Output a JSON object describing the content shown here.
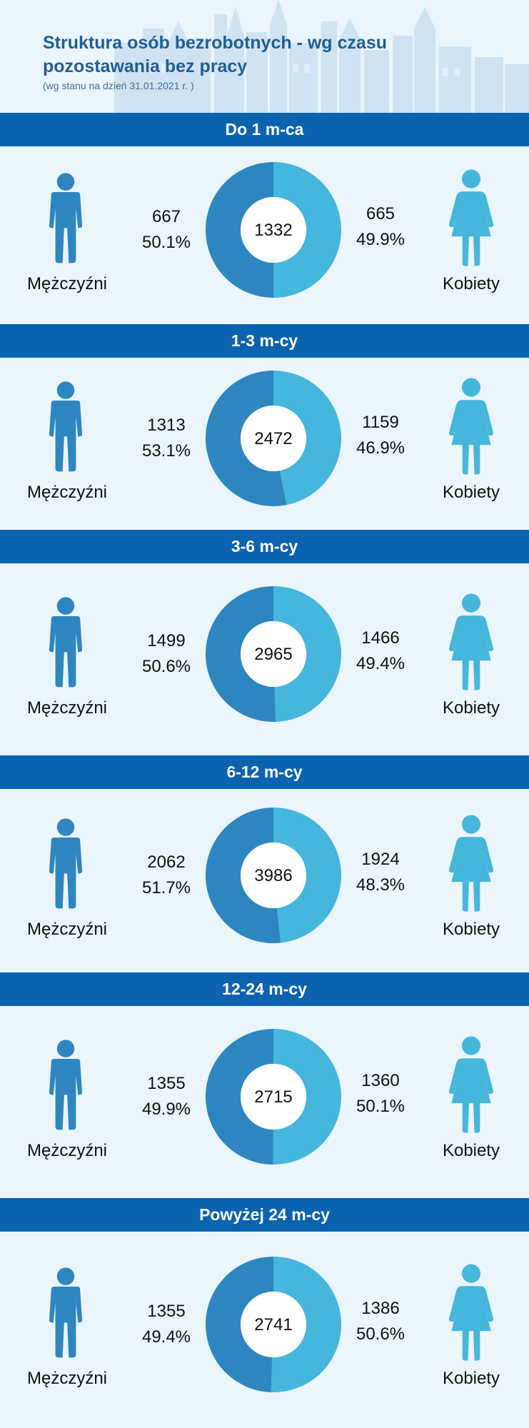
{
  "header": {
    "title": "Struktura osób bezrobotnych - wg czasu pozostawania bez pracy",
    "subtitle": "(wg stanu na dzień 31.01.2021 r. )"
  },
  "colors": {
    "band": "#0b63b0",
    "male": "#2e86c1",
    "female": "#45b6dc",
    "background": "#eaf5fc"
  },
  "labels": {
    "male": "Mężczyźni",
    "female": "Kobiety"
  },
  "chart_data": {
    "type": "pie",
    "variant": "donut",
    "sections": [
      {
        "title": "Do 1 m-ca",
        "total": "1332",
        "male": 667,
        "male_pct": "50.1%",
        "female": 665,
        "female_pct": "49.9%"
      },
      {
        "title": "1-3 m-cy",
        "total": "2472",
        "male": 1313,
        "male_pct": "53.1%",
        "female": 1159,
        "female_pct": "46.9%"
      },
      {
        "title": "3-6 m-cy",
        "total": "2965",
        "male": 1499,
        "male_pct": "50.6%",
        "female": 1466,
        "female_pct": "49.4%"
      },
      {
        "title": "6-12 m-cy",
        "total": "3986",
        "male": 2062,
        "male_pct": "51.7%",
        "female": 1924,
        "female_pct": "48.3%"
      },
      {
        "title": "12-24 m-cy",
        "total": "2715",
        "male": 1355,
        "male_pct": "49.9%",
        "female": 1360,
        "female_pct": "50.1%"
      },
      {
        "title": "Powyżej 24 m-cy",
        "total": "2741",
        "male": 1355,
        "male_pct": "49.4%",
        "female": 1386,
        "female_pct": "50.6%"
      }
    ]
  }
}
